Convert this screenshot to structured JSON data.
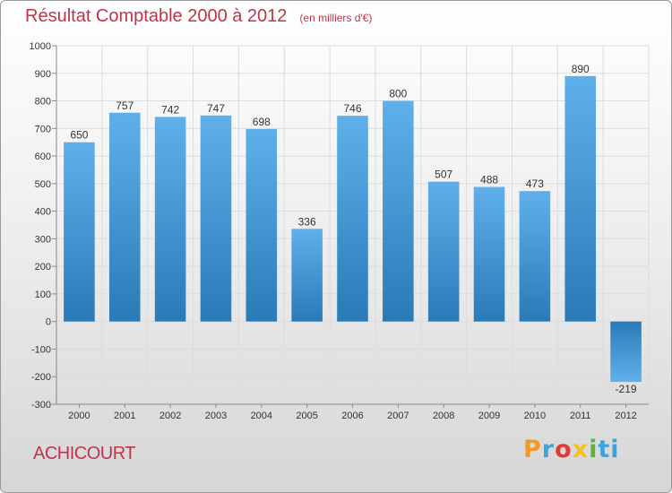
{
  "chart_data": {
    "type": "bar",
    "title": "Résultat Comptable 2000 à 2012",
    "unit_note": "(en milliers d'€)",
    "categories": [
      "2000",
      "2001",
      "2002",
      "2003",
      "2004",
      "2005",
      "2006",
      "2007",
      "2008",
      "2009",
      "2010",
      "2011",
      "2012"
    ],
    "values": [
      650,
      757,
      742,
      747,
      698,
      336,
      746,
      800,
      507,
      488,
      473,
      890,
      -219
    ],
    "data_labels": [
      "650",
      "757",
      "742",
      "747",
      "698",
      "336",
      "746",
      "800",
      "507",
      "488",
      "473",
      "890",
      "-219"
    ],
    "yticks": [
      1000,
      900,
      800,
      700,
      600,
      500,
      400,
      300,
      200,
      100,
      0,
      -100,
      -200,
      -300
    ],
    "ylim": [
      -300,
      1000
    ],
    "grid": true,
    "legend": "none",
    "xlabel": "",
    "ylabel": ""
  },
  "commune": "ACHICOURT",
  "brand": {
    "letters": [
      "P",
      "r",
      "o",
      "x",
      "i",
      "ti"
    ]
  },
  "colors": {
    "bar_light": "#5fb0ea",
    "bar_dark": "#2a7ab8",
    "title": "#c0344a",
    "grid": "#dcdcdc"
  }
}
